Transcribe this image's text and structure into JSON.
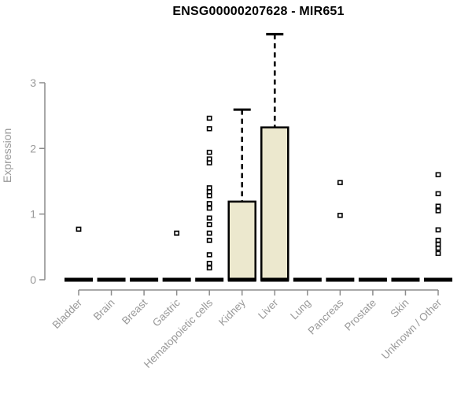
{
  "window": {
    "background": "#ffffff"
  },
  "chart_data": {
    "type": "boxplot",
    "title": "ENSG00000207628 - MIR651",
    "xlabel": "",
    "ylabel": "Expression",
    "ylim": [
      0,
      3.8
    ],
    "yticks": [
      0,
      1,
      2,
      3
    ],
    "grid": false,
    "legend": false,
    "categories": [
      "Bladder",
      "Brain",
      "Breast",
      "Gastric",
      "Hematopoietic cells",
      "Kidney",
      "Liver",
      "Lung",
      "Pancreas",
      "Prostate",
      "Skin",
      "Unknown / Other"
    ],
    "series": [
      {
        "category": "Bladder",
        "q1": 0,
        "median": 0,
        "q3": 0,
        "whisker_low": 0,
        "whisker_high": 0,
        "outliers": [
          0.77
        ]
      },
      {
        "category": "Brain",
        "q1": 0,
        "median": 0,
        "q3": 0,
        "whisker_low": 0,
        "whisker_high": 0,
        "outliers": []
      },
      {
        "category": "Breast",
        "q1": 0,
        "median": 0,
        "q3": 0,
        "whisker_low": 0,
        "whisker_high": 0,
        "outliers": []
      },
      {
        "category": "Gastric",
        "q1": 0,
        "median": 0,
        "q3": 0,
        "whisker_low": 0,
        "whisker_high": 0,
        "outliers": [
          0.71
        ]
      },
      {
        "category": "Hematopoietic cells",
        "q1": 0,
        "median": 0,
        "q3": 0,
        "whisker_low": 0,
        "whisker_high": 0,
        "outliers": [
          2.46,
          2.3,
          1.94,
          1.84,
          1.78,
          1.4,
          1.34,
          1.28,
          1.16,
          1.09,
          0.94,
          0.84,
          0.71,
          0.6,
          0.38,
          0.25,
          0.18
        ]
      },
      {
        "category": "Kidney",
        "q1": 0,
        "median": 0,
        "q3": 1.19,
        "whisker_low": 0,
        "whisker_high": 2.59,
        "outliers": []
      },
      {
        "category": "Liver",
        "q1": 0,
        "median": 0,
        "q3": 2.32,
        "whisker_low": 0,
        "whisker_high": 3.74,
        "outliers": []
      },
      {
        "category": "Lung",
        "q1": 0,
        "median": 0,
        "q3": 0,
        "whisker_low": 0,
        "whisker_high": 0,
        "outliers": []
      },
      {
        "category": "Pancreas",
        "q1": 0,
        "median": 0,
        "q3": 0,
        "whisker_low": 0,
        "whisker_high": 0,
        "outliers": [
          1.48,
          0.98
        ]
      },
      {
        "category": "Prostate",
        "q1": 0,
        "median": 0,
        "q3": 0,
        "whisker_low": 0,
        "whisker_high": 0,
        "outliers": []
      },
      {
        "category": "Skin",
        "q1": 0,
        "median": 0,
        "q3": 0,
        "whisker_low": 0,
        "whisker_high": 0,
        "outliers": []
      },
      {
        "category": "Unknown / Other",
        "q1": 0,
        "median": 0,
        "q3": 0,
        "whisker_low": 0,
        "whisker_high": 0,
        "outliers": [
          1.6,
          1.31,
          1.12,
          1.05,
          0.76,
          0.6,
          0.54,
          0.48,
          0.4
        ]
      }
    ],
    "style": {
      "box_fill": "#ECE8CE",
      "box_stroke": "#000000",
      "axis_color": "#8c8c8c",
      "tick_label_color": "#999999",
      "title_color": "#000000"
    }
  }
}
